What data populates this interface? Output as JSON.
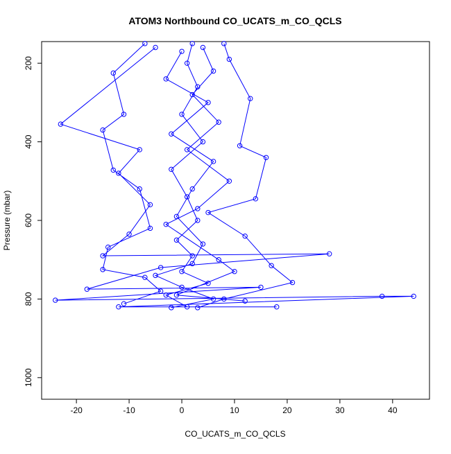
{
  "chart_data": {
    "type": "line",
    "title": "ATOM3 Northbound CO_UCATS_m_CO_QCLS",
    "x_label": "CO_UCATS_m_CO_QCLS",
    "y_label": "Pressure (mbar)",
    "color": "#0000ff",
    "xlim": [
      -26.6,
      47
    ],
    "xticks": [
      -20,
      -10,
      0,
      10,
      20,
      30,
      40
    ],
    "ylim": [
      1055,
      145
    ],
    "yticks": [
      200,
      400,
      600,
      800,
      1000
    ],
    "x": [
      2,
      1,
      3,
      0,
      4,
      -2,
      1,
      3,
      -1,
      2,
      0,
      5,
      -3,
      1,
      null,
      -5,
      -23,
      -8,
      -12,
      -6,
      -10,
      -15,
      28,
      -4,
      -18,
      15,
      -24,
      38,
      44,
      -12,
      18,
      null,
      8,
      9,
      13,
      11,
      16,
      14,
      5,
      12,
      17,
      21,
      8,
      3,
      null,
      -7,
      -13,
      -11,
      -15,
      -13,
      -8,
      -6,
      -14,
      -15,
      -7,
      -4,
      -11,
      null,
      0,
      -3,
      5,
      -2,
      6,
      2,
      -1,
      4,
      2,
      -5,
      0,
      6,
      -2,
      null,
      4,
      6,
      2,
      7,
      1,
      9,
      3,
      -3,
      7,
      10,
      -1,
      12
    ],
    "values": [
      150,
      200,
      260,
      330,
      400,
      470,
      540,
      600,
      650,
      690,
      730,
      760,
      790,
      820,
      null,
      160,
      355,
      420,
      480,
      560,
      635,
      690,
      685,
      720,
      775,
      770,
      803,
      793,
      793,
      820,
      820,
      null,
      150,
      190,
      290,
      410,
      440,
      545,
      580,
      640,
      715,
      758,
      800,
      822,
      null,
      150,
      225,
      330,
      370,
      472,
      520,
      620,
      668,
      725,
      745,
      780,
      812,
      null,
      170,
      240,
      300,
      380,
      450,
      520,
      590,
      660,
      710,
      740,
      770,
      800,
      822,
      null,
      160,
      220,
      280,
      350,
      420,
      500,
      570,
      610,
      700,
      730,
      790,
      805
    ]
  }
}
